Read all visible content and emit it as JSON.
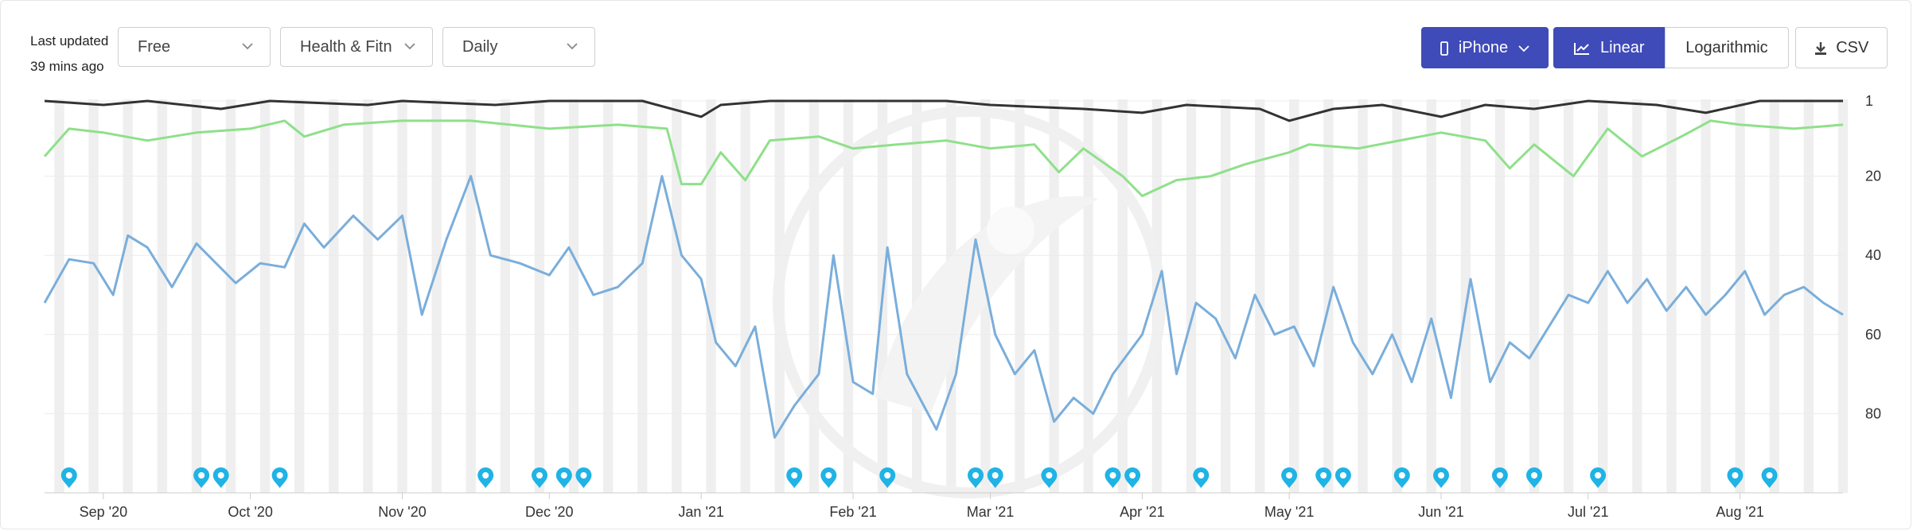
{
  "header": {
    "updated_line1": "Last updated",
    "updated_line2": "39 mins ago",
    "price_filter": "Free",
    "category_filter": "Health & Fitn",
    "period_filter": "Daily",
    "device_button": "iPhone",
    "linear_button": "Linear",
    "log_button": "Logarithmic",
    "csv_button": "CSV"
  },
  "colors": {
    "accent": "#3f4bb8",
    "black_line": "#333333",
    "green_line": "#8fe08a",
    "blue_line": "#7aaedb",
    "marker": "#1fb3e6",
    "weekend_band": "#efefef"
  },
  "icons": {
    "device": "phone-icon",
    "linear": "line-chart-icon",
    "csv": "download-icon",
    "dropdown": "chevron-down-icon",
    "marker": "map-pin-icon"
  },
  "chart_data": {
    "type": "line",
    "y_axis": {
      "reversed": true,
      "ylim": [
        1,
        100
      ],
      "ticks": [
        1,
        20,
        40,
        60,
        80
      ]
    },
    "x_axis": {
      "start": "2020-08-20",
      "end": "2021-08-22",
      "ticks": [
        {
          "label": "Sep '20",
          "date": "2020-09-01"
        },
        {
          "label": "Oct '20",
          "date": "2020-10-01"
        },
        {
          "label": "Nov '20",
          "date": "2020-11-01"
        },
        {
          "label": "Dec '20",
          "date": "2020-12-01"
        },
        {
          "label": "Jan '21",
          "date": "2021-01-01"
        },
        {
          "label": "Feb '21",
          "date": "2021-02-01"
        },
        {
          "label": "Mar '21",
          "date": "2021-03-01"
        },
        {
          "label": "Apr '21",
          "date": "2021-04-01"
        },
        {
          "label": "May '21",
          "date": "2021-05-01"
        },
        {
          "label": "Jun '21",
          "date": "2021-06-01"
        },
        {
          "label": "Jul '21",
          "date": "2021-07-01"
        },
        {
          "label": "Aug '21",
          "date": "2021-08-01"
        }
      ]
    },
    "grid": true,
    "series": [
      {
        "color": "#333333",
        "points": [
          [
            "2020-08-20",
            1
          ],
          [
            "2020-09-01",
            2
          ],
          [
            "2020-09-10",
            1
          ],
          [
            "2020-09-25",
            3
          ],
          [
            "2020-10-05",
            1
          ],
          [
            "2020-10-25",
            2
          ],
          [
            "2020-11-01",
            1
          ],
          [
            "2020-11-20",
            2
          ],
          [
            "2020-12-01",
            1
          ],
          [
            "2020-12-20",
            1
          ],
          [
            "2021-01-01",
            5
          ],
          [
            "2021-01-05",
            2
          ],
          [
            "2021-01-15",
            1
          ],
          [
            "2021-02-01",
            1
          ],
          [
            "2021-02-20",
            1
          ],
          [
            "2021-03-01",
            2
          ],
          [
            "2021-03-20",
            3
          ],
          [
            "2021-04-01",
            4
          ],
          [
            "2021-04-10",
            2
          ],
          [
            "2021-04-25",
            3
          ],
          [
            "2021-05-01",
            6
          ],
          [
            "2021-05-10",
            3
          ],
          [
            "2021-05-20",
            2
          ],
          [
            "2021-06-01",
            5
          ],
          [
            "2021-06-10",
            2
          ],
          [
            "2021-06-20",
            3
          ],
          [
            "2021-07-01",
            1
          ],
          [
            "2021-07-15",
            2
          ],
          [
            "2021-07-25",
            4
          ],
          [
            "2021-08-05",
            1
          ],
          [
            "2021-08-22",
            1
          ]
        ]
      },
      {
        "color": "#8fe08a",
        "points": [
          [
            "2020-08-20",
            15
          ],
          [
            "2020-08-25",
            8
          ],
          [
            "2020-09-01",
            9
          ],
          [
            "2020-09-10",
            11
          ],
          [
            "2020-09-20",
            9
          ],
          [
            "2020-10-01",
            8
          ],
          [
            "2020-10-08",
            6
          ],
          [
            "2020-10-12",
            10
          ],
          [
            "2020-10-20",
            7
          ],
          [
            "2020-11-01",
            6
          ],
          [
            "2020-11-15",
            6
          ],
          [
            "2020-12-01",
            8
          ],
          [
            "2020-12-15",
            7
          ],
          [
            "2020-12-25",
            8
          ],
          [
            "2020-12-28",
            22
          ],
          [
            "2021-01-01",
            22
          ],
          [
            "2021-01-05",
            14
          ],
          [
            "2021-01-10",
            21
          ],
          [
            "2021-01-15",
            11
          ],
          [
            "2021-01-25",
            10
          ],
          [
            "2021-02-01",
            13
          ],
          [
            "2021-02-10",
            12
          ],
          [
            "2021-02-20",
            11
          ],
          [
            "2021-03-01",
            13
          ],
          [
            "2021-03-10",
            12
          ],
          [
            "2021-03-15",
            19
          ],
          [
            "2021-03-20",
            13
          ],
          [
            "2021-03-28",
            20
          ],
          [
            "2021-04-01",
            25
          ],
          [
            "2021-04-08",
            21
          ],
          [
            "2021-04-15",
            20
          ],
          [
            "2021-04-22",
            17
          ],
          [
            "2021-05-01",
            14
          ],
          [
            "2021-05-05",
            12
          ],
          [
            "2021-05-15",
            13
          ],
          [
            "2021-06-01",
            9
          ],
          [
            "2021-06-10",
            11
          ],
          [
            "2021-06-15",
            18
          ],
          [
            "2021-06-20",
            12
          ],
          [
            "2021-06-28",
            20
          ],
          [
            "2021-07-05",
            8
          ],
          [
            "2021-07-12",
            15
          ],
          [
            "2021-07-20",
            10
          ],
          [
            "2021-07-26",
            6
          ],
          [
            "2021-08-01",
            7
          ],
          [
            "2021-08-12",
            8
          ],
          [
            "2021-08-22",
            7
          ]
        ]
      },
      {
        "color": "#7aaedb",
        "points": [
          [
            "2020-08-20",
            52
          ],
          [
            "2020-08-25",
            41
          ],
          [
            "2020-08-30",
            42
          ],
          [
            "2020-09-03",
            50
          ],
          [
            "2020-09-06",
            35
          ],
          [
            "2020-09-10",
            38
          ],
          [
            "2020-09-15",
            48
          ],
          [
            "2020-09-20",
            37
          ],
          [
            "2020-09-28",
            47
          ],
          [
            "2020-10-03",
            42
          ],
          [
            "2020-10-08",
            43
          ],
          [
            "2020-10-12",
            32
          ],
          [
            "2020-10-16",
            38
          ],
          [
            "2020-10-22",
            30
          ],
          [
            "2020-10-27",
            36
          ],
          [
            "2020-11-01",
            30
          ],
          [
            "2020-11-05",
            55
          ],
          [
            "2020-11-10",
            36
          ],
          [
            "2020-11-15",
            20
          ],
          [
            "2020-11-19",
            40
          ],
          [
            "2020-11-25",
            42
          ],
          [
            "2020-12-01",
            45
          ],
          [
            "2020-12-05",
            38
          ],
          [
            "2020-12-10",
            50
          ],
          [
            "2020-12-15",
            48
          ],
          [
            "2020-12-20",
            42
          ],
          [
            "2020-12-24",
            20
          ],
          [
            "2020-12-28",
            40
          ],
          [
            "2021-01-01",
            46
          ],
          [
            "2021-01-04",
            62
          ],
          [
            "2021-01-08",
            68
          ],
          [
            "2021-01-12",
            58
          ],
          [
            "2021-01-16",
            86
          ],
          [
            "2021-01-20",
            78
          ],
          [
            "2021-01-25",
            70
          ],
          [
            "2021-01-28",
            40
          ],
          [
            "2021-02-01",
            72
          ],
          [
            "2021-02-05",
            75
          ],
          [
            "2021-02-08",
            38
          ],
          [
            "2021-02-12",
            70
          ],
          [
            "2021-02-18",
            84
          ],
          [
            "2021-02-22",
            70
          ],
          [
            "2021-02-26",
            36
          ],
          [
            "2021-03-02",
            60
          ],
          [
            "2021-03-06",
            70
          ],
          [
            "2021-03-10",
            64
          ],
          [
            "2021-03-14",
            82
          ],
          [
            "2021-03-18",
            76
          ],
          [
            "2021-03-22",
            80
          ],
          [
            "2021-03-26",
            70
          ],
          [
            "2021-04-01",
            60
          ],
          [
            "2021-04-05",
            44
          ],
          [
            "2021-04-08",
            70
          ],
          [
            "2021-04-12",
            52
          ],
          [
            "2021-04-16",
            56
          ],
          [
            "2021-04-20",
            66
          ],
          [
            "2021-04-24",
            50
          ],
          [
            "2021-04-28",
            60
          ],
          [
            "2021-05-02",
            58
          ],
          [
            "2021-05-06",
            68
          ],
          [
            "2021-05-10",
            48
          ],
          [
            "2021-05-14",
            62
          ],
          [
            "2021-05-18",
            70
          ],
          [
            "2021-05-22",
            60
          ],
          [
            "2021-05-26",
            72
          ],
          [
            "2021-05-30",
            56
          ],
          [
            "2021-06-03",
            76
          ],
          [
            "2021-06-07",
            46
          ],
          [
            "2021-06-11",
            72
          ],
          [
            "2021-06-15",
            62
          ],
          [
            "2021-06-19",
            66
          ],
          [
            "2021-06-23",
            58
          ],
          [
            "2021-06-27",
            50
          ],
          [
            "2021-07-01",
            52
          ],
          [
            "2021-07-05",
            44
          ],
          [
            "2021-07-09",
            52
          ],
          [
            "2021-07-13",
            46
          ],
          [
            "2021-07-17",
            54
          ],
          [
            "2021-07-21",
            48
          ],
          [
            "2021-07-25",
            55
          ],
          [
            "2021-07-29",
            50
          ],
          [
            "2021-08-02",
            44
          ],
          [
            "2021-08-06",
            55
          ],
          [
            "2021-08-10",
            50
          ],
          [
            "2021-08-14",
            48
          ],
          [
            "2021-08-18",
            52
          ],
          [
            "2021-08-22",
            55
          ]
        ]
      }
    ],
    "markers": [
      "2020-08-25",
      "2020-09-21",
      "2020-09-25",
      "2020-10-07",
      "2020-11-18",
      "2020-11-29",
      "2020-12-04",
      "2020-12-08",
      "2021-01-20",
      "2021-01-27",
      "2021-02-08",
      "2021-02-26",
      "2021-03-02",
      "2021-03-13",
      "2021-03-26",
      "2021-03-30",
      "2021-04-13",
      "2021-05-01",
      "2021-05-08",
      "2021-05-12",
      "2021-05-24",
      "2021-06-01",
      "2021-06-13",
      "2021-06-20",
      "2021-07-03",
      "2021-07-31",
      "2021-08-07"
    ]
  }
}
